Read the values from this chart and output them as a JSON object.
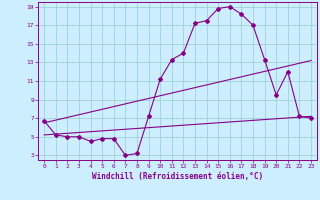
{
  "xlabel": "Windchill (Refroidissement éolien,°C)",
  "xlim": [
    -0.5,
    23.5
  ],
  "ylim": [
    2.5,
    19.5
  ],
  "xticks": [
    0,
    1,
    2,
    3,
    4,
    5,
    6,
    7,
    8,
    9,
    10,
    11,
    12,
    13,
    14,
    15,
    16,
    17,
    18,
    19,
    20,
    21,
    22,
    23
  ],
  "yticks": [
    3,
    5,
    7,
    9,
    11,
    13,
    15,
    17,
    19
  ],
  "bg_color": "#cceeff",
  "line_color": "#880088",
  "grid_color": "#99cccc",
  "main_line": {
    "x": [
      0,
      1,
      2,
      3,
      4,
      5,
      6,
      7,
      8,
      9,
      10,
      11,
      12,
      13,
      14,
      15,
      16,
      17,
      18,
      19,
      20,
      21,
      22,
      23
    ],
    "y": [
      6.7,
      5.2,
      5.0,
      5.0,
      4.5,
      4.8,
      4.8,
      3.0,
      3.2,
      7.2,
      11.2,
      13.3,
      14.0,
      17.2,
      17.5,
      18.8,
      19.0,
      18.2,
      17.0,
      13.3,
      9.5,
      12.0,
      7.2,
      7.0
    ]
  },
  "diag_line1": {
    "x": [
      0,
      23
    ],
    "y": [
      6.5,
      13.2
    ]
  },
  "diag_line2": {
    "x": [
      0,
      23
    ],
    "y": [
      5.2,
      7.2
    ]
  }
}
